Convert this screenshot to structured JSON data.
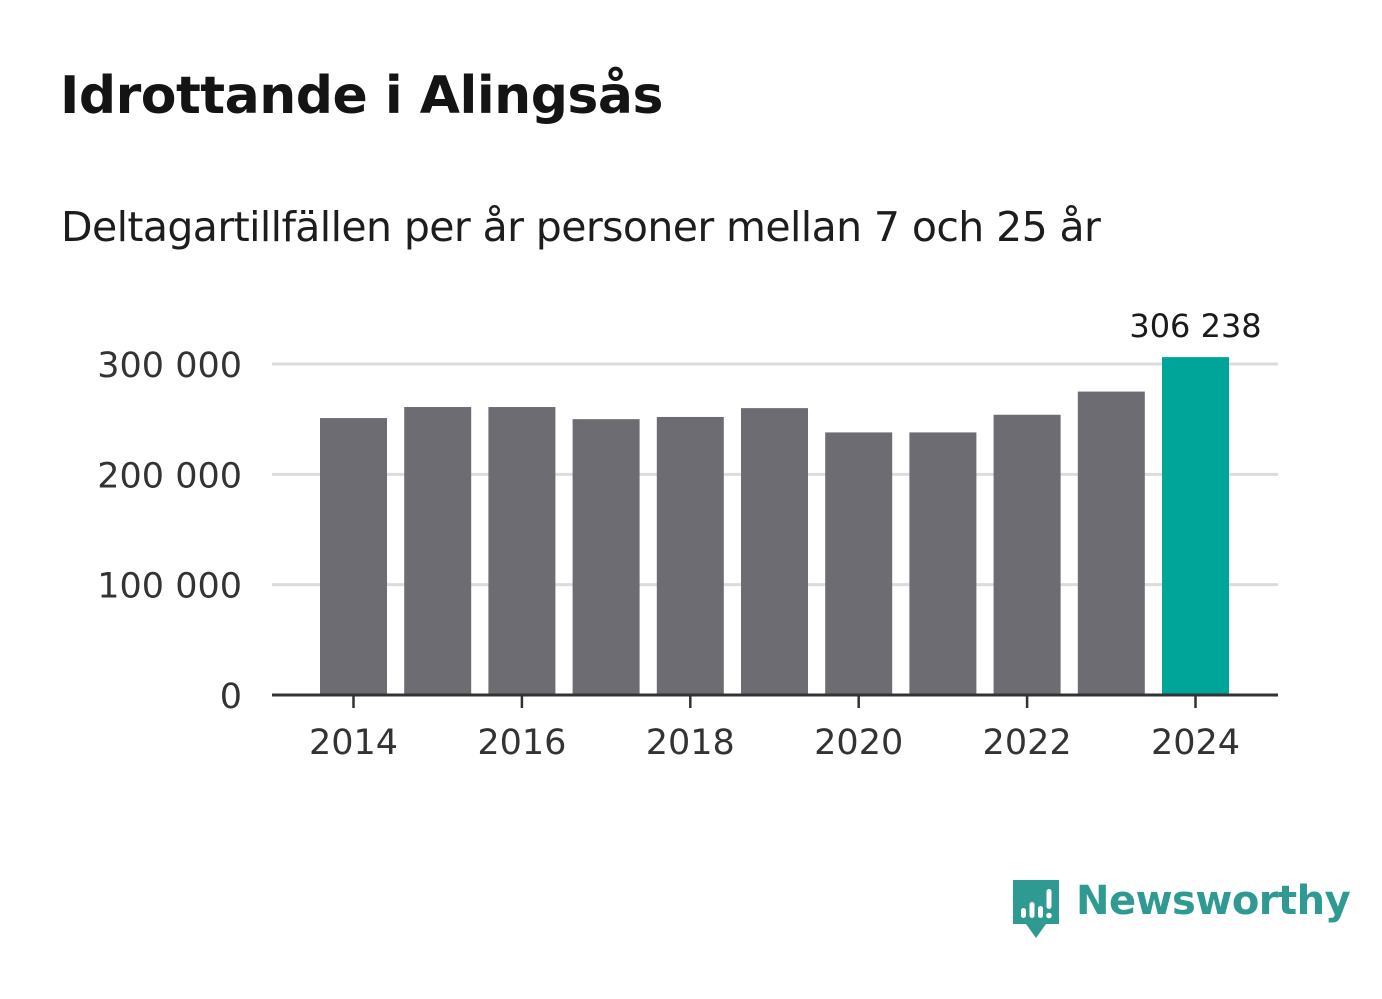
{
  "title": "Idrottande i Alingsås",
  "subtitle": "Deltagartillfällen per år personer mellan 7 och 25 år",
  "brand": {
    "name": "Newsworthy",
    "icon": "newsworthy-logo-icon",
    "color": "#2f9a91"
  },
  "colors": {
    "bar": "#6d6c73",
    "highlight": "#00a59a",
    "grid": "#dcdcdc",
    "axis": "#333333",
    "text": "#333333"
  },
  "chart_data": {
    "type": "bar",
    "title": "Idrottande i Alingsås",
    "subtitle": "Deltagartillfällen per år personer mellan 7 och 25 år",
    "xlabel": "",
    "ylabel": "",
    "categories": [
      2014,
      2015,
      2016,
      2017,
      2018,
      2019,
      2020,
      2021,
      2022,
      2023,
      2024
    ],
    "values": [
      251000,
      261000,
      261000,
      250000,
      252000,
      260000,
      238000,
      238000,
      254000,
      275000,
      306238
    ],
    "highlight_index": 10,
    "highlight_label": "306 238",
    "ylim": [
      0,
      300000
    ],
    "yticks": [
      0,
      100000,
      200000,
      300000
    ],
    "ytick_labels": [
      "0",
      "100 000",
      "200 000",
      "300 000"
    ],
    "xticks": [
      2014,
      2016,
      2018,
      2020,
      2022,
      2024
    ],
    "xtick_labels": [
      "2014",
      "2016",
      "2018",
      "2020",
      "2022",
      "2024"
    ],
    "grid": true
  }
}
